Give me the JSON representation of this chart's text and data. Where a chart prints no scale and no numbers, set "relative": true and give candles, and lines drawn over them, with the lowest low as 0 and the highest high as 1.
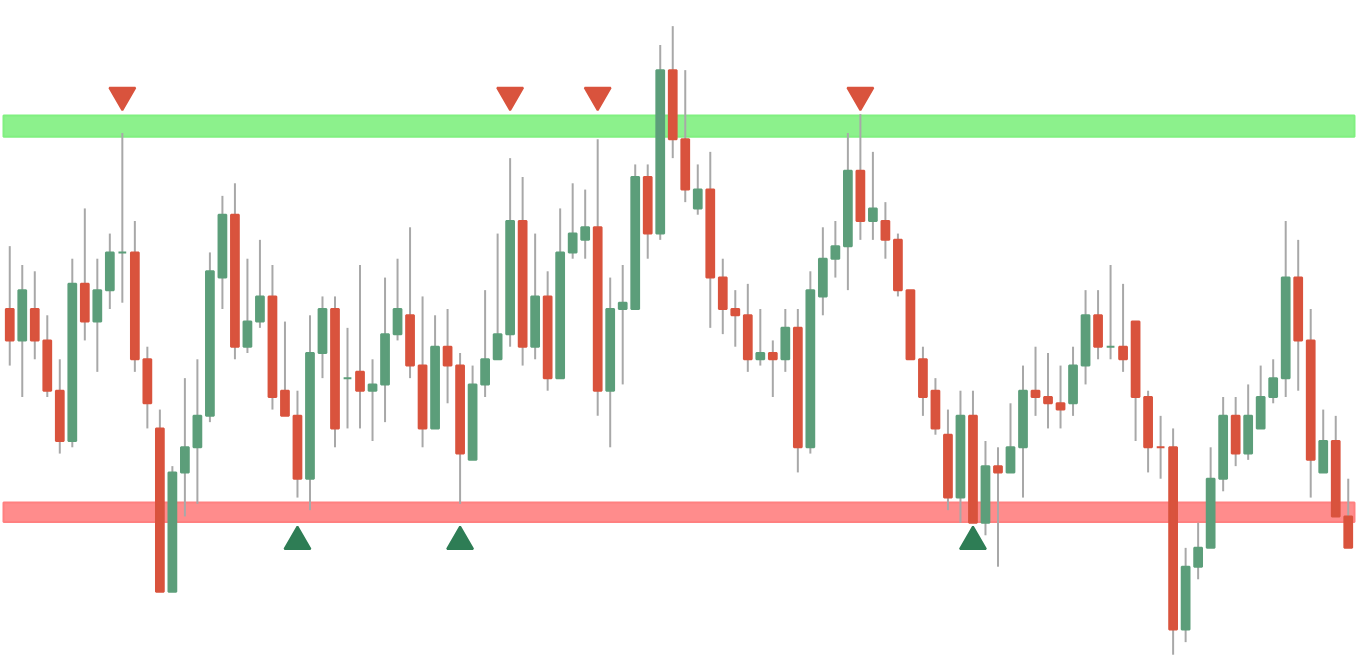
{
  "chart_data": {
    "type": "candlestick",
    "relative": true,
    "grid": false,
    "tick_labels": false,
    "categories": [
      null,
      null,
      null,
      null,
      null,
      null,
      null,
      null,
      null,
      null,
      null,
      null,
      null,
      null,
      null,
      null,
      null,
      null,
      null,
      null,
      null,
      null,
      null,
      null,
      null,
      null,
      null,
      null,
      null,
      null,
      null,
      null,
      null,
      null,
      null,
      null,
      null,
      null,
      null,
      null,
      null,
      null,
      null,
      null,
      null,
      null,
      null,
      null,
      null,
      null,
      null,
      null,
      null,
      null,
      null,
      null,
      null,
      null,
      null,
      null,
      null,
      null,
      null,
      null,
      null,
      null,
      null,
      null,
      null,
      null,
      null,
      null,
      null,
      null,
      null,
      null,
      null,
      null,
      null,
      null,
      null,
      null,
      null,
      null,
      null,
      null,
      null,
      null,
      null,
      null,
      null,
      null,
      null,
      null,
      null,
      null,
      null,
      null,
      null,
      null,
      null,
      null,
      null,
      null,
      null,
      null,
      null,
      null
    ],
    "ohlc": [
      [
        0.55,
        0.65,
        0.46,
        0.5
      ],
      [
        0.5,
        0.62,
        0.41,
        0.58
      ],
      [
        0.55,
        0.61,
        0.47,
        0.5
      ],
      [
        0.5,
        0.54,
        0.41,
        0.42
      ],
      [
        0.42,
        0.47,
        0.32,
        0.34
      ],
      [
        0.34,
        0.63,
        0.33,
        0.59
      ],
      [
        0.59,
        0.71,
        0.5,
        0.53
      ],
      [
        0.53,
        0.63,
        0.45,
        0.58
      ],
      [
        0.58,
        0.67,
        0.55,
        0.64
      ],
      [
        0.64,
        0.83,
        0.56,
        0.64
      ],
      [
        0.64,
        0.69,
        0.45,
        0.47
      ],
      [
        0.47,
        0.49,
        0.36,
        0.4
      ],
      [
        0.36,
        0.39,
        0.1,
        0.1
      ],
      [
        0.1,
        0.3,
        0.1,
        0.29
      ],
      [
        0.29,
        0.44,
        0.22,
        0.33
      ],
      [
        0.33,
        0.47,
        0.24,
        0.38
      ],
      [
        0.38,
        0.64,
        0.37,
        0.61
      ],
      [
        0.6,
        0.73,
        0.55,
        0.7
      ],
      [
        0.7,
        0.75,
        0.47,
        0.49
      ],
      [
        0.49,
        0.63,
        0.48,
        0.53
      ],
      [
        0.53,
        0.66,
        0.52,
        0.57
      ],
      [
        0.57,
        0.62,
        0.39,
        0.41
      ],
      [
        0.42,
        0.53,
        0.38,
        0.38
      ],
      [
        0.38,
        0.42,
        0.25,
        0.28
      ],
      [
        0.28,
        0.54,
        0.23,
        0.48
      ],
      [
        0.48,
        0.57,
        0.44,
        0.55
      ],
      [
        0.55,
        0.57,
        0.33,
        0.36
      ],
      [
        0.44,
        0.52,
        0.36,
        0.44
      ],
      [
        0.45,
        0.62,
        0.36,
        0.42
      ],
      [
        0.42,
        0.47,
        0.34,
        0.43
      ],
      [
        0.43,
        0.6,
        0.37,
        0.51
      ],
      [
        0.51,
        0.63,
        0.5,
        0.55
      ],
      [
        0.54,
        0.68,
        0.44,
        0.46
      ],
      [
        0.46,
        0.57,
        0.33,
        0.36
      ],
      [
        0.36,
        0.54,
        0.36,
        0.49
      ],
      [
        0.49,
        0.55,
        0.4,
        0.46
      ],
      [
        0.46,
        0.48,
        0.24,
        0.32
      ],
      [
        0.31,
        0.46,
        0.31,
        0.43
      ],
      [
        0.43,
        0.58,
        0.41,
        0.47
      ],
      [
        0.47,
        0.67,
        0.47,
        0.51
      ],
      [
        0.51,
        0.79,
        0.49,
        0.69
      ],
      [
        0.69,
        0.76,
        0.46,
        0.49
      ],
      [
        0.49,
        0.67,
        0.47,
        0.57
      ],
      [
        0.57,
        0.61,
        0.42,
        0.44
      ],
      [
        0.44,
        0.71,
        0.44,
        0.64
      ],
      [
        0.64,
        0.75,
        0.63,
        0.67
      ],
      [
        0.66,
        0.74,
        0.63,
        0.68
      ],
      [
        0.68,
        0.82,
        0.38,
        0.42
      ],
      [
        0.42,
        0.6,
        0.33,
        0.55
      ],
      [
        0.55,
        0.62,
        0.43,
        0.56
      ],
      [
        0.55,
        0.78,
        0.55,
        0.76
      ],
      [
        0.76,
        0.78,
        0.63,
        0.67
      ],
      [
        0.67,
        0.97,
        0.66,
        0.93
      ],
      [
        0.93,
        1.0,
        0.79,
        0.82
      ],
      [
        0.82,
        0.93,
        0.72,
        0.74
      ],
      [
        0.71,
        0.78,
        0.7,
        0.74
      ],
      [
        0.74,
        0.8,
        0.52,
        0.6
      ],
      [
        0.6,
        0.63,
        0.51,
        0.55
      ],
      [
        0.55,
        0.58,
        0.49,
        0.54
      ],
      [
        0.54,
        0.59,
        0.45,
        0.47
      ],
      [
        0.47,
        0.55,
        0.46,
        0.48
      ],
      [
        0.48,
        0.5,
        0.41,
        0.47
      ],
      [
        0.47,
        0.55,
        0.45,
        0.52
      ],
      [
        0.52,
        0.55,
        0.29,
        0.33
      ],
      [
        0.33,
        0.61,
        0.32,
        0.58
      ],
      [
        0.57,
        0.68,
        0.54,
        0.63
      ],
      [
        0.63,
        0.69,
        0.6,
        0.65
      ],
      [
        0.65,
        0.83,
        0.58,
        0.77
      ],
      [
        0.77,
        0.86,
        0.66,
        0.69
      ],
      [
        0.69,
        0.8,
        0.66,
        0.71
      ],
      [
        0.69,
        0.72,
        0.63,
        0.66
      ],
      [
        0.66,
        0.67,
        0.57,
        0.58
      ],
      [
        0.58,
        0.58,
        0.47,
        0.47
      ],
      [
        0.47,
        0.49,
        0.38,
        0.41
      ],
      [
        0.42,
        0.44,
        0.35,
        0.36
      ],
      [
        0.35,
        0.39,
        0.23,
        0.25
      ],
      [
        0.25,
        0.42,
        0.21,
        0.38
      ],
      [
        0.38,
        0.42,
        0.21,
        0.21
      ],
      [
        0.21,
        0.34,
        0.19,
        0.3
      ],
      [
        0.3,
        0.33,
        0.14,
        0.29
      ],
      [
        0.29,
        0.4,
        0.29,
        0.33
      ],
      [
        0.33,
        0.46,
        0.25,
        0.42
      ],
      [
        0.42,
        0.49,
        0.38,
        0.41
      ],
      [
        0.41,
        0.48,
        0.36,
        0.4
      ],
      [
        0.4,
        0.46,
        0.36,
        0.39
      ],
      [
        0.4,
        0.49,
        0.38,
        0.46
      ],
      [
        0.46,
        0.58,
        0.43,
        0.54
      ],
      [
        0.54,
        0.58,
        0.47,
        0.49
      ],
      [
        0.49,
        0.62,
        0.47,
        0.49
      ],
      [
        0.49,
        0.59,
        0.45,
        0.47
      ],
      [
        0.53,
        0.53,
        0.34,
        0.41
      ],
      [
        0.41,
        0.42,
        0.29,
        0.33
      ],
      [
        0.33,
        0.38,
        0.28,
        0.33
      ],
      [
        0.33,
        0.36,
        0.0,
        0.04
      ],
      [
        0.04,
        0.17,
        0.02,
        0.14
      ],
      [
        0.14,
        0.21,
        0.12,
        0.17
      ],
      [
        0.17,
        0.33,
        0.17,
        0.28
      ],
      [
        0.28,
        0.41,
        0.26,
        0.38
      ],
      [
        0.38,
        0.41,
        0.3,
        0.32
      ],
      [
        0.32,
        0.43,
        0.31,
        0.38
      ],
      [
        0.36,
        0.46,
        0.36,
        0.41
      ],
      [
        0.41,
        0.47,
        0.4,
        0.44
      ],
      [
        0.44,
        0.69,
        0.41,
        0.6
      ],
      [
        0.6,
        0.66,
        0.42,
        0.5
      ],
      [
        0.5,
        0.55,
        0.25,
        0.31
      ],
      [
        0.29,
        0.39,
        0.29,
        0.34
      ],
      [
        0.34,
        0.38,
        0.22,
        0.22
      ],
      [
        0.22,
        0.28,
        0.17,
        0.17
      ]
    ],
    "colors": [
      "#d9533d",
      "#5c9e7a",
      "#d9533d",
      "#d9533d",
      "#d9533d",
      "#5c9e7a",
      "#d9533d",
      "#5c9e7a",
      "#5c9e7a",
      "#5c9e7a",
      "#d9533d",
      "#d9533d",
      "#d9533d",
      "#5c9e7a",
      "#5c9e7a",
      "#5c9e7a",
      "#5c9e7a",
      "#5c9e7a",
      "#d9533d",
      "#5c9e7a",
      "#5c9e7a",
      "#d9533d",
      "#d9533d",
      "#d9533d",
      "#5c9e7a",
      "#5c9e7a",
      "#d9533d",
      "#5c9e7a",
      "#d9533d",
      "#5c9e7a",
      "#5c9e7a",
      "#5c9e7a",
      "#d9533d",
      "#d9533d",
      "#5c9e7a",
      "#d9533d",
      "#d9533d",
      "#5c9e7a",
      "#5c9e7a",
      "#5c9e7a",
      "#5c9e7a",
      "#d9533d",
      "#5c9e7a",
      "#d9533d",
      "#5c9e7a",
      "#5c9e7a",
      "#5c9e7a",
      "#d9533d",
      "#5c9e7a",
      "#5c9e7a",
      "#5c9e7a",
      "#d9533d",
      "#5c9e7a",
      "#d9533d",
      "#d9533d",
      "#5c9e7a",
      "#d9533d",
      "#d9533d",
      "#d9533d",
      "#d9533d",
      "#5c9e7a",
      "#d9533d",
      "#5c9e7a",
      "#d9533d",
      "#5c9e7a",
      "#5c9e7a",
      "#5c9e7a",
      "#5c9e7a",
      "#d9533d",
      "#5c9e7a",
      "#d9533d",
      "#d9533d",
      "#d9533d",
      "#d9533d",
      "#d9533d",
      "#d9533d",
      "#5c9e7a",
      "#d9533d",
      "#5c9e7a",
      "#d9533d",
      "#5c9e7a",
      "#5c9e7a",
      "#d9533d",
      "#d9533d",
      "#d9533d",
      "#5c9e7a",
      "#5c9e7a",
      "#d9533d",
      "#5c9e7a",
      "#d9533d",
      "#d9533d",
      "#d9533d",
      "#d9533d",
      "#d9533d",
      "#5c9e7a",
      "#5c9e7a",
      "#5c9e7a",
      "#5c9e7a",
      "#d9533d",
      "#5c9e7a",
      "#5c9e7a",
      "#5c9e7a",
      "#5c9e7a",
      "#d9533d",
      "#d9533d",
      "#5c9e7a",
      "#d9533d",
      "#d9533d"
    ],
    "series": [
      {
        "type": "scatter",
        "marker": "triangle_down",
        "color": "#d9533d",
        "values": [
          null,
          null,
          null,
          null,
          null,
          null,
          null,
          null,
          null,
          0.89,
          null,
          null,
          null,
          null,
          null,
          null,
          null,
          null,
          null,
          null,
          null,
          null,
          null,
          null,
          null,
          null,
          null,
          null,
          null,
          null,
          null,
          null,
          null,
          null,
          null,
          null,
          null,
          null,
          null,
          null,
          0.89,
          null,
          null,
          null,
          null,
          null,
          null,
          0.89,
          null,
          null,
          null,
          null,
          null,
          null,
          null,
          null,
          null,
          null,
          null,
          null,
          null,
          null,
          null,
          null,
          null,
          null,
          null,
          null,
          0.89,
          null,
          null,
          null,
          null,
          null,
          null,
          null,
          null,
          null,
          null,
          null,
          null,
          null,
          null,
          null,
          null,
          null,
          null,
          null,
          null,
          null,
          null,
          null,
          null,
          null,
          null,
          null,
          null,
          null,
          null,
          null,
          null,
          null,
          null,
          null,
          null,
          null,
          null,
          null
        ]
      },
      {
        "type": "scatter",
        "marker": "triangle",
        "color": "#2e7d55",
        "values": [
          null,
          null,
          null,
          null,
          null,
          null,
          null,
          null,
          null,
          null,
          null,
          null,
          null,
          null,
          null,
          null,
          null,
          null,
          null,
          null,
          null,
          null,
          null,
          0.18,
          null,
          null,
          null,
          null,
          null,
          null,
          null,
          null,
          null,
          null,
          null,
          null,
          0.18,
          null,
          null,
          null,
          null,
          null,
          null,
          null,
          null,
          null,
          null,
          null,
          null,
          null,
          null,
          null,
          null,
          null,
          null,
          null,
          null,
          null,
          null,
          null,
          null,
          null,
          null,
          null,
          null,
          null,
          null,
          null,
          null,
          null,
          null,
          null,
          null,
          null,
          null,
          null,
          null,
          0.18,
          null,
          null,
          null,
          null,
          null,
          null,
          null,
          null,
          null,
          null,
          null,
          null,
          null,
          null,
          null,
          null,
          null,
          null,
          null,
          null,
          null,
          null,
          null,
          null,
          null,
          null,
          null,
          null,
          null,
          null
        ]
      }
    ],
    "bands": [
      {
        "axis": "y",
        "from": 0.824,
        "to": 0.858,
        "color": "#80f080"
      },
      {
        "axis": "y",
        "from": 0.211,
        "to": 0.242,
        "color": "#ff8080"
      }
    ]
  }
}
